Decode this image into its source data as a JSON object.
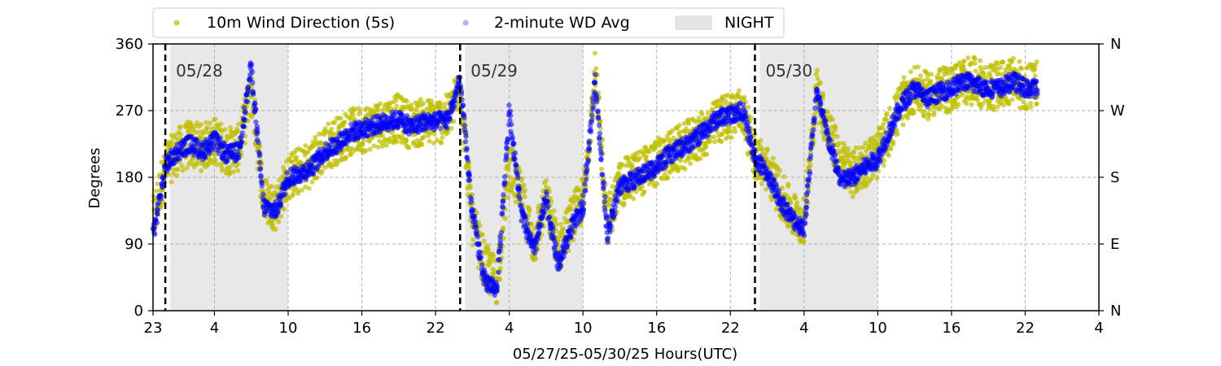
{
  "chart_data": {
    "type": "scatter",
    "xlabel": "05/27/25-05/30/25  Hours(UTC)",
    "ylabel": "Degrees",
    "x_tick_labels": [
      "23",
      "4",
      "10",
      "16",
      "22",
      "4",
      "10",
      "16",
      "22",
      "4",
      "10",
      "16",
      "22",
      "4"
    ],
    "x_ticks_hours": [
      0,
      5,
      11,
      17,
      23,
      29,
      35,
      41,
      47,
      53,
      59,
      65,
      71,
      77
    ],
    "xlim_hours": [
      0,
      77
    ],
    "ylim": [
      0,
      360
    ],
    "y_ticks": [
      0,
      90,
      180,
      270,
      360
    ],
    "y_tick_labels": [
      "0",
      "90",
      "180",
      "270",
      "360"
    ],
    "right_axis_labels": [
      "N",
      "E",
      "S",
      "W",
      "N"
    ],
    "grid": true,
    "legend_position": "top",
    "legend": [
      {
        "label": "10m Wind Direction (5s)",
        "kind": "dot",
        "color": "#bfbf00"
      },
      {
        "label": "2-minute WD Avg",
        "kind": "dot",
        "color": "#0000ff"
      },
      {
        "label": "NIGHT",
        "kind": "patch",
        "color": "#e5e5e5"
      }
    ],
    "night_periods_hours": [
      [
        1.4,
        11
      ],
      [
        25.4,
        35
      ],
      [
        49.4,
        59
      ]
    ],
    "day_markers": [
      {
        "hour": 1,
        "label": "05/28"
      },
      {
        "hour": 25,
        "label": "05/29"
      },
      {
        "hour": 49,
        "label": "05/30"
      }
    ],
    "series": [
      {
        "name": "10m Wind Direction (5s)",
        "color": "#bfbf00",
        "x_hours": [
          0,
          1,
          2,
          3,
          4,
          5,
          6,
          7,
          8,
          9,
          10,
          11,
          12,
          13,
          14,
          15,
          16,
          17,
          18,
          19,
          20,
          21,
          22,
          23,
          24,
          25,
          26,
          27,
          28,
          29,
          30,
          31,
          32,
          33,
          34,
          35,
          36,
          37,
          38,
          39,
          40,
          41,
          42,
          43,
          44,
          45,
          46,
          47,
          48,
          49,
          50,
          51,
          52,
          53,
          54,
          55,
          56,
          57,
          58,
          59,
          60,
          61,
          62,
          63,
          64,
          65,
          66,
          67,
          68,
          69,
          70,
          71,
          72
        ],
        "y": [
          120,
          195,
          215,
          225,
          220,
          230,
          215,
          220,
          300,
          150,
          140,
          180,
          190,
          200,
          220,
          230,
          240,
          245,
          250,
          255,
          260,
          250,
          255,
          255,
          260,
          300,
          120,
          60,
          40,
          200,
          150,
          90,
          150,
          80,
          120,
          150,
          320,
          120,
          170,
          180,
          190,
          200,
          210,
          220,
          230,
          240,
          255,
          265,
          270,
          210,
          190,
          160,
          130,
          120,
          300,
          240,
          200,
          185,
          200,
          210,
          245,
          280,
          300,
          290,
          295,
          300,
          310,
          310,
          300,
          305,
          310,
          300,
          305
        ]
      },
      {
        "name": "2-minute WD Avg",
        "color": "#0000ff",
        "x_hours": [
          0,
          1,
          2,
          3,
          4,
          5,
          6,
          7,
          8,
          9,
          10,
          11,
          12,
          13,
          14,
          15,
          16,
          17,
          18,
          19,
          20,
          21,
          22,
          23,
          24,
          25,
          26,
          27,
          28,
          29,
          30,
          31,
          32,
          33,
          34,
          35,
          36,
          37,
          38,
          39,
          40,
          41,
          42,
          43,
          44,
          45,
          46,
          47,
          48,
          49,
          50,
          51,
          52,
          53,
          54,
          55,
          56,
          57,
          58,
          59,
          60,
          61,
          62,
          63,
          64,
          65,
          66,
          67,
          68,
          69,
          70,
          71,
          72
        ],
        "y": [
          100,
          195,
          215,
          225,
          215,
          230,
          210,
          215,
          330,
          140,
          135,
          180,
          185,
          195,
          215,
          225,
          240,
          245,
          250,
          255,
          258,
          248,
          255,
          255,
          258,
          310,
          130,
          40,
          30,
          270,
          130,
          80,
          150,
          60,
          110,
          140,
          310,
          100,
          170,
          175,
          185,
          195,
          210,
          220,
          230,
          245,
          260,
          265,
          270,
          205,
          185,
          150,
          125,
          110,
          295,
          230,
          175,
          180,
          195,
          205,
          245,
          280,
          300,
          285,
          295,
          300,
          310,
          305,
          300,
          300,
          310,
          300,
          300
        ]
      }
    ]
  }
}
